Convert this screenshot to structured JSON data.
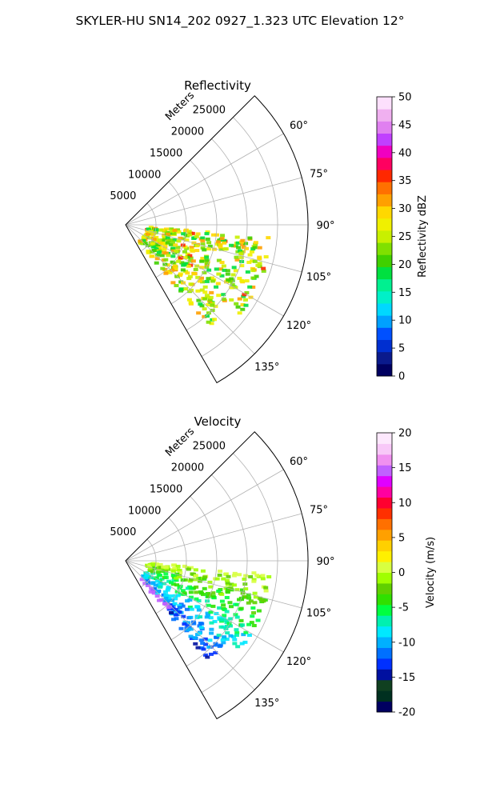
{
  "figure": {
    "title": "SKYLER-HU  SN14_202  0927_1.323 UTC Elevation 12°"
  },
  "chart_data": [
    {
      "type": "polar-sector",
      "title": "Reflectivity",
      "radial_label": "Meters",
      "r_ticks": [
        5000,
        10000,
        15000,
        20000,
        25000
      ],
      "r_tick_labels": [
        "5000",
        "10000",
        "15000",
        "20000",
        "25000"
      ],
      "r_max": 30000,
      "theta_range_deg": [
        45,
        150
      ],
      "theta_ticks": [
        "60°",
        "75°",
        "90°",
        "105°",
        "120°",
        "135°"
      ],
      "grid": true,
      "colorbar": {
        "label": "Reflectivity dBZ",
        "range": [
          0,
          50
        ],
        "ticks": [
          "0",
          "5",
          "10",
          "15",
          "20",
          "25",
          "30",
          "35",
          "40",
          "45",
          "50"
        ],
        "colors": [
          "#000060",
          "#0a1a8c",
          "#002fd0",
          "#0050ff",
          "#00a0ff",
          "#00d8ff",
          "#00f0c8",
          "#00f090",
          "#00e040",
          "#40d000",
          "#80e000",
          "#c8f000",
          "#f0f000",
          "#ffd800",
          "#ffa000",
          "#ff7000",
          "#ff2800",
          "#ff0060",
          "#f000c0",
          "#c040ff",
          "#e080f0",
          "#f0b0f0",
          "#fde0fd"
        ]
      }
    },
    {
      "type": "polar-sector",
      "title": "Velocity",
      "radial_label": "Meters",
      "r_ticks": [
        5000,
        10000,
        15000,
        20000,
        25000
      ],
      "r_tick_labels": [
        "5000",
        "10000",
        "15000",
        "20000",
        "25000"
      ],
      "r_max": 30000,
      "theta_range_deg": [
        45,
        150
      ],
      "theta_ticks": [
        "60°",
        "75°",
        "90°",
        "105°",
        "120°",
        "135°"
      ],
      "grid": true,
      "colorbar": {
        "label": "Velocity (m/s)",
        "range": [
          -20,
          20
        ],
        "ticks": [
          "-20",
          "-15",
          "-10",
          "-5",
          "0",
          "5",
          "10",
          "15",
          "20"
        ],
        "colors": [
          "#000060",
          "#003020",
          "#104020",
          "#0010a0",
          "#0030ff",
          "#0070ff",
          "#00b0ff",
          "#00e8ff",
          "#00f0b0",
          "#00ff40",
          "#30e000",
          "#60d000",
          "#a0ff00",
          "#d8ff40",
          "#fff000",
          "#ffd000",
          "#ffa000",
          "#ff7000",
          "#ff3000",
          "#ff0030",
          "#ff00a0",
          "#e000ff",
          "#c060ff",
          "#f090f0",
          "#f8c8f8",
          "#fde8fd"
        ]
      }
    }
  ]
}
